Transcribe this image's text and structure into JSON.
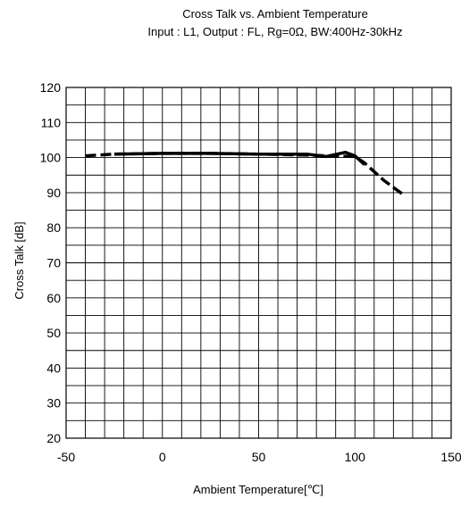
{
  "chart_data": {
    "type": "line",
    "title": "Cross Talk vs. Ambient Temperature",
    "subtitle": "Input : L1, Output : FL, Rg=0Ω, BW:400Hz-30kHz",
    "xlabel": "Ambient Temperature[℃]",
    "ylabel": "Cross Talk [dB]",
    "xlim": [
      -50,
      150
    ],
    "ylim": [
      20,
      120
    ],
    "x_ticks": [
      -50,
      0,
      50,
      100,
      150
    ],
    "y_ticks": [
      20,
      30,
      40,
      50,
      60,
      70,
      80,
      90,
      100,
      110,
      120
    ],
    "grid": true,
    "grid_minor_x_step": 10,
    "grid_minor_y_step": 5,
    "series": [
      {
        "style": "solid",
        "x": [
          -25,
          0,
          25,
          50,
          75,
          85,
          95,
          100,
          105
        ],
        "y": [
          101,
          101.2,
          101.2,
          101,
          101,
          100.3,
          101.5,
          100.5,
          98
        ]
      },
      {
        "style": "dashed",
        "x": [
          -40,
          -25,
          0,
          25,
          50,
          75,
          85,
          100,
          105,
          110,
          115,
          120,
          125
        ],
        "y": [
          100.5,
          101,
          101.2,
          101.2,
          101,
          100.7,
          100.5,
          100.3,
          98.5,
          96,
          93.5,
          91.5,
          89.5
        ]
      }
    ]
  }
}
